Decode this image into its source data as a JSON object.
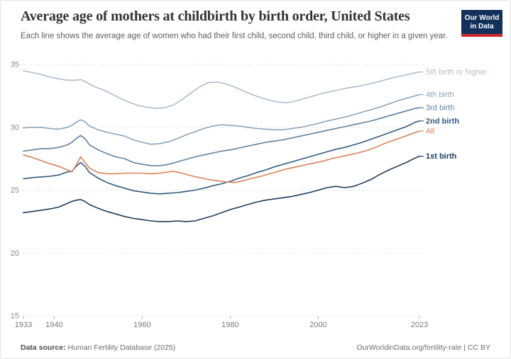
{
  "header": {
    "title": "Average age of mothers at childbirth by birth order, United States",
    "subtitle": "Each line shows the average age of women who had their first child, second child, third child, or higher in a given year.",
    "logo": {
      "line1": "Our World",
      "line2": "in Data",
      "bg_color": "#12305a",
      "accent_color": "#d22a33"
    }
  },
  "footer": {
    "source_label": "Data source:",
    "source_text": " Human Fertility Database (2025)",
    "credit": "OurWorldinData.org/fertility-rate | CC BY"
  },
  "colors": {
    "grid": "#dadada",
    "axis_text": "#8a8a8a",
    "x_axis_text": "#7a7a7a"
  },
  "chart_data": {
    "type": "line",
    "title": "Average age of mothers at childbirth by birth order, United States",
    "xlabel": "",
    "ylabel": "",
    "xlim": [
      1933,
      2023
    ],
    "ylim": [
      15,
      35
    ],
    "x_ticks": [
      1933,
      1940,
      1960,
      1980,
      2000,
      2023
    ],
    "y_ticks": [
      15,
      20,
      25,
      30,
      35
    ],
    "grid": "dashed-horizontal",
    "legend_position": "line-end-labels-right",
    "series": [
      {
        "name": "5th birth or higher",
        "color": "#aebdcc",
        "bold_label": false,
        "points": [
          [
            1933,
            34.5
          ],
          [
            1935,
            34.35
          ],
          [
            1937,
            34.2
          ],
          [
            1939,
            34.0
          ],
          [
            1941,
            33.85
          ],
          [
            1943,
            33.75
          ],
          [
            1945,
            33.75
          ],
          [
            1946,
            33.8
          ],
          [
            1947,
            33.65
          ],
          [
            1949,
            33.25
          ],
          [
            1951,
            33.0
          ],
          [
            1953,
            32.65
          ],
          [
            1955,
            32.3
          ],
          [
            1957,
            32.0
          ],
          [
            1959,
            31.75
          ],
          [
            1961,
            31.6
          ],
          [
            1963,
            31.5
          ],
          [
            1965,
            31.55
          ],
          [
            1967,
            31.75
          ],
          [
            1969,
            32.2
          ],
          [
            1971,
            32.7
          ],
          [
            1973,
            33.2
          ],
          [
            1975,
            33.55
          ],
          [
            1977,
            33.6
          ],
          [
            1979,
            33.45
          ],
          [
            1981,
            33.2
          ],
          [
            1983,
            32.9
          ],
          [
            1985,
            32.6
          ],
          [
            1987,
            32.35
          ],
          [
            1989,
            32.15
          ],
          [
            1991,
            32.0
          ],
          [
            1993,
            31.95
          ],
          [
            1995,
            32.1
          ],
          [
            1997,
            32.3
          ],
          [
            1999,
            32.5
          ],
          [
            2001,
            32.7
          ],
          [
            2003,
            32.85
          ],
          [
            2005,
            33.0
          ],
          [
            2007,
            33.15
          ],
          [
            2009,
            33.25
          ],
          [
            2011,
            33.4
          ],
          [
            2013,
            33.55
          ],
          [
            2015,
            33.75
          ],
          [
            2017,
            33.95
          ],
          [
            2019,
            34.1
          ],
          [
            2021,
            34.25
          ],
          [
            2023,
            34.4
          ]
        ]
      },
      {
        "name": "4th birth",
        "color": "#8aa4bb",
        "bold_label": false,
        "points": [
          [
            1933,
            29.95
          ],
          [
            1935,
            30.0
          ],
          [
            1937,
            30.0
          ],
          [
            1939,
            29.9
          ],
          [
            1941,
            29.85
          ],
          [
            1943,
            30.0
          ],
          [
            1944,
            30.15
          ],
          [
            1945,
            30.4
          ],
          [
            1946,
            30.6
          ],
          [
            1947,
            30.45
          ],
          [
            1948,
            30.1
          ],
          [
            1950,
            29.8
          ],
          [
            1952,
            29.6
          ],
          [
            1954,
            29.45
          ],
          [
            1956,
            29.3
          ],
          [
            1958,
            29.0
          ],
          [
            1960,
            28.8
          ],
          [
            1962,
            28.65
          ],
          [
            1964,
            28.7
          ],
          [
            1966,
            28.85
          ],
          [
            1968,
            29.1
          ],
          [
            1970,
            29.4
          ],
          [
            1972,
            29.65
          ],
          [
            1974,
            29.9
          ],
          [
            1976,
            30.1
          ],
          [
            1978,
            30.2
          ],
          [
            1980,
            30.15
          ],
          [
            1982,
            30.1
          ],
          [
            1984,
            30.0
          ],
          [
            1986,
            29.9
          ],
          [
            1988,
            29.85
          ],
          [
            1990,
            29.8
          ],
          [
            1992,
            29.8
          ],
          [
            1994,
            29.9
          ],
          [
            1996,
            30.0
          ],
          [
            1998,
            30.15
          ],
          [
            2000,
            30.3
          ],
          [
            2002,
            30.5
          ],
          [
            2004,
            30.65
          ],
          [
            2006,
            30.8
          ],
          [
            2008,
            31.0
          ],
          [
            2010,
            31.2
          ],
          [
            2012,
            31.4
          ],
          [
            2014,
            31.6
          ],
          [
            2016,
            31.85
          ],
          [
            2018,
            32.1
          ],
          [
            2020,
            32.3
          ],
          [
            2022,
            32.5
          ],
          [
            2023,
            32.6
          ]
        ]
      },
      {
        "name": "3rd birth",
        "color": "#5e81a1",
        "bold_label": false,
        "points": [
          [
            1933,
            28.1
          ],
          [
            1935,
            28.2
          ],
          [
            1937,
            28.3
          ],
          [
            1939,
            28.3
          ],
          [
            1941,
            28.4
          ],
          [
            1943,
            28.6
          ],
          [
            1944,
            28.8
          ],
          [
            1945,
            29.1
          ],
          [
            1946,
            29.35
          ],
          [
            1947,
            29.1
          ],
          [
            1948,
            28.6
          ],
          [
            1950,
            28.2
          ],
          [
            1952,
            27.9
          ],
          [
            1954,
            27.65
          ],
          [
            1956,
            27.5
          ],
          [
            1958,
            27.2
          ],
          [
            1960,
            27.05
          ],
          [
            1962,
            26.95
          ],
          [
            1964,
            26.95
          ],
          [
            1966,
            27.05
          ],
          [
            1968,
            27.25
          ],
          [
            1970,
            27.45
          ],
          [
            1972,
            27.65
          ],
          [
            1974,
            27.8
          ],
          [
            1976,
            27.95
          ],
          [
            1978,
            28.1
          ],
          [
            1980,
            28.2
          ],
          [
            1982,
            28.35
          ],
          [
            1984,
            28.5
          ],
          [
            1986,
            28.65
          ],
          [
            1988,
            28.8
          ],
          [
            1990,
            28.9
          ],
          [
            1992,
            29.0
          ],
          [
            1994,
            29.15
          ],
          [
            1996,
            29.3
          ],
          [
            1998,
            29.45
          ],
          [
            2000,
            29.6
          ],
          [
            2002,
            29.75
          ],
          [
            2004,
            29.9
          ],
          [
            2006,
            30.05
          ],
          [
            2008,
            30.2
          ],
          [
            2010,
            30.35
          ],
          [
            2012,
            30.5
          ],
          [
            2014,
            30.7
          ],
          [
            2016,
            30.9
          ],
          [
            2018,
            31.1
          ],
          [
            2020,
            31.3
          ],
          [
            2022,
            31.5
          ],
          [
            2023,
            31.55
          ]
        ]
      },
      {
        "name": "2nd birth",
        "color": "#33597e",
        "bold_label": true,
        "points": [
          [
            1933,
            25.9
          ],
          [
            1935,
            26.0
          ],
          [
            1937,
            26.05
          ],
          [
            1939,
            26.1
          ],
          [
            1941,
            26.2
          ],
          [
            1943,
            26.45
          ],
          [
            1944,
            26.5
          ],
          [
            1945,
            26.9
          ],
          [
            1946,
            27.2
          ],
          [
            1947,
            26.9
          ],
          [
            1948,
            26.4
          ],
          [
            1950,
            25.95
          ],
          [
            1952,
            25.6
          ],
          [
            1954,
            25.35
          ],
          [
            1956,
            25.15
          ],
          [
            1958,
            24.95
          ],
          [
            1960,
            24.85
          ],
          [
            1962,
            24.75
          ],
          [
            1964,
            24.7
          ],
          [
            1966,
            24.75
          ],
          [
            1968,
            24.8
          ],
          [
            1970,
            24.9
          ],
          [
            1972,
            25.0
          ],
          [
            1974,
            25.15
          ],
          [
            1976,
            25.35
          ],
          [
            1978,
            25.5
          ],
          [
            1980,
            25.7
          ],
          [
            1982,
            25.95
          ],
          [
            1984,
            26.15
          ],
          [
            1986,
            26.4
          ],
          [
            1988,
            26.6
          ],
          [
            1990,
            26.85
          ],
          [
            1992,
            27.05
          ],
          [
            1994,
            27.25
          ],
          [
            1996,
            27.45
          ],
          [
            1998,
            27.65
          ],
          [
            2000,
            27.85
          ],
          [
            2002,
            28.05
          ],
          [
            2004,
            28.25
          ],
          [
            2006,
            28.4
          ],
          [
            2008,
            28.6
          ],
          [
            2010,
            28.8
          ],
          [
            2012,
            29.05
          ],
          [
            2014,
            29.3
          ],
          [
            2016,
            29.55
          ],
          [
            2018,
            29.8
          ],
          [
            2020,
            30.05
          ],
          [
            2022,
            30.4
          ],
          [
            2023,
            30.5
          ]
        ]
      },
      {
        "name": "All",
        "color": "#d8825b",
        "bold_label": false,
        "points": [
          [
            1933,
            27.8
          ],
          [
            1935,
            27.6
          ],
          [
            1937,
            27.35
          ],
          [
            1939,
            27.1
          ],
          [
            1941,
            26.9
          ],
          [
            1942,
            26.75
          ],
          [
            1943,
            26.6
          ],
          [
            1944,
            26.45
          ],
          [
            1945,
            27.0
          ],
          [
            1946,
            27.65
          ],
          [
            1947,
            27.2
          ],
          [
            1948,
            26.75
          ],
          [
            1950,
            26.4
          ],
          [
            1952,
            26.3
          ],
          [
            1954,
            26.3
          ],
          [
            1956,
            26.35
          ],
          [
            1958,
            26.35
          ],
          [
            1960,
            26.35
          ],
          [
            1962,
            26.3
          ],
          [
            1964,
            26.35
          ],
          [
            1966,
            26.45
          ],
          [
            1967,
            26.5
          ],
          [
            1969,
            26.35
          ],
          [
            1971,
            26.15
          ],
          [
            1973,
            26.0
          ],
          [
            1975,
            25.85
          ],
          [
            1977,
            25.75
          ],
          [
            1979,
            25.65
          ],
          [
            1981,
            25.6
          ],
          [
            1983,
            25.75
          ],
          [
            1985,
            25.95
          ],
          [
            1987,
            26.1
          ],
          [
            1989,
            26.3
          ],
          [
            1991,
            26.5
          ],
          [
            1993,
            26.7
          ],
          [
            1995,
            26.85
          ],
          [
            1997,
            27.0
          ],
          [
            1999,
            27.15
          ],
          [
            2001,
            27.3
          ],
          [
            2003,
            27.5
          ],
          [
            2005,
            27.65
          ],
          [
            2007,
            27.8
          ],
          [
            2009,
            27.95
          ],
          [
            2011,
            28.15
          ],
          [
            2013,
            28.4
          ],
          [
            2015,
            28.7
          ],
          [
            2017,
            28.95
          ],
          [
            2019,
            29.2
          ],
          [
            2021,
            29.45
          ],
          [
            2023,
            29.7
          ]
        ]
      },
      {
        "name": "1st birth",
        "color": "#1d3c5c",
        "bold_label": true,
        "points": [
          [
            1933,
            23.2
          ],
          [
            1935,
            23.3
          ],
          [
            1937,
            23.4
          ],
          [
            1939,
            23.5
          ],
          [
            1941,
            23.65
          ],
          [
            1943,
            23.95
          ],
          [
            1944,
            24.1
          ],
          [
            1945,
            24.2
          ],
          [
            1946,
            24.25
          ],
          [
            1947,
            24.1
          ],
          [
            1948,
            23.85
          ],
          [
            1950,
            23.55
          ],
          [
            1952,
            23.3
          ],
          [
            1954,
            23.1
          ],
          [
            1956,
            22.9
          ],
          [
            1958,
            22.75
          ],
          [
            1960,
            22.65
          ],
          [
            1962,
            22.55
          ],
          [
            1964,
            22.5
          ],
          [
            1966,
            22.5
          ],
          [
            1968,
            22.55
          ],
          [
            1970,
            22.5
          ],
          [
            1972,
            22.55
          ],
          [
            1974,
            22.75
          ],
          [
            1976,
            22.95
          ],
          [
            1978,
            23.2
          ],
          [
            1980,
            23.45
          ],
          [
            1982,
            23.65
          ],
          [
            1984,
            23.85
          ],
          [
            1986,
            24.05
          ],
          [
            1988,
            24.2
          ],
          [
            1990,
            24.3
          ],
          [
            1992,
            24.4
          ],
          [
            1994,
            24.5
          ],
          [
            1996,
            24.65
          ],
          [
            1998,
            24.8
          ],
          [
            2000,
            25.0
          ],
          [
            2002,
            25.2
          ],
          [
            2004,
            25.3
          ],
          [
            2006,
            25.2
          ],
          [
            2008,
            25.3
          ],
          [
            2010,
            25.55
          ],
          [
            2012,
            25.85
          ],
          [
            2014,
            26.25
          ],
          [
            2016,
            26.6
          ],
          [
            2018,
            26.9
          ],
          [
            2020,
            27.2
          ],
          [
            2022,
            27.55
          ],
          [
            2023,
            27.7
          ]
        ]
      }
    ]
  }
}
